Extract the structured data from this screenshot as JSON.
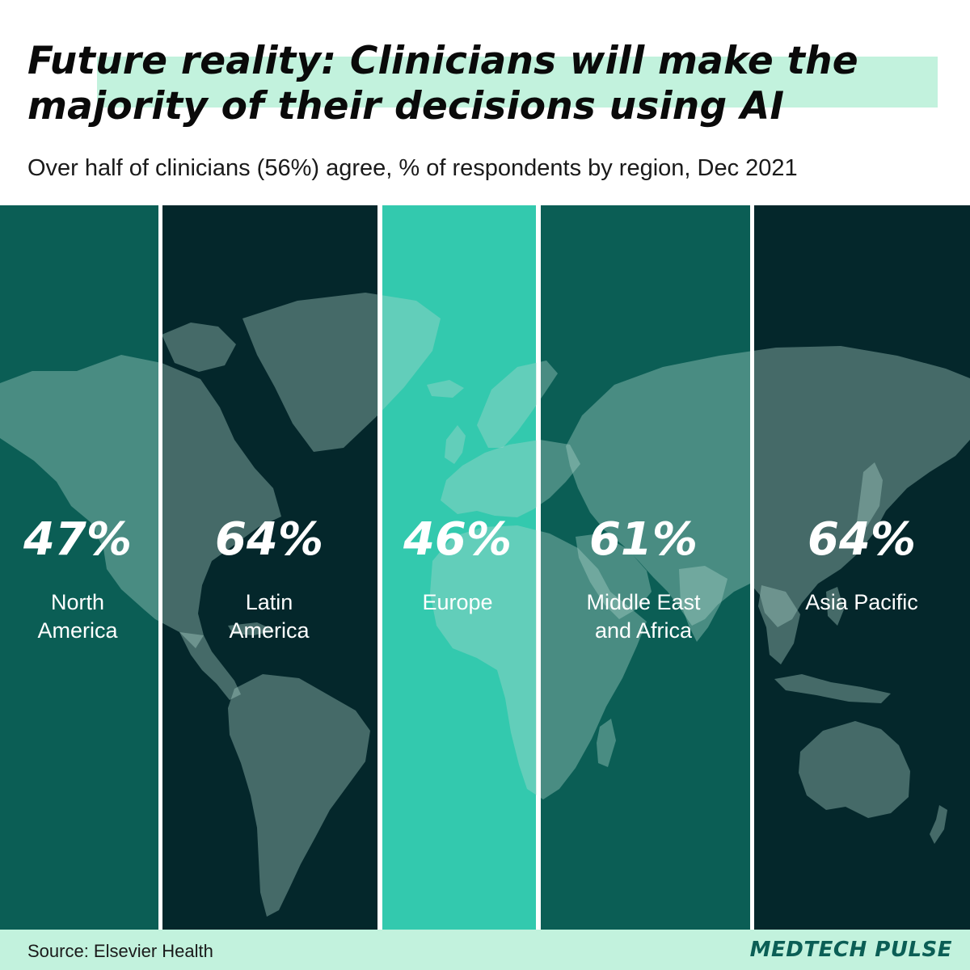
{
  "title": {
    "line1": "Future reality: Clinicians will make the",
    "line2": "majority of their decisions using AI"
  },
  "subtitle": "Over half of clinicians (56%) agree, % of respondents by region, Dec 2021",
  "colors": {
    "highlight": "#c2f2dd",
    "teal_dark": "#0b5e55",
    "navy": "#04272b",
    "teal_light": "#33c9ae",
    "land": "rgba(175,215,205,0.38)",
    "text": "#ffffff"
  },
  "chart_data": {
    "type": "bar",
    "categories": [
      "North America",
      "Latin America",
      "Europe",
      "Middle East and Africa",
      "Asia Pacific"
    ],
    "category_lines": [
      [
        "North",
        "America"
      ],
      [
        "Latin",
        "America"
      ],
      [
        "Europe"
      ],
      [
        "Middle East",
        "and Africa"
      ],
      [
        "Asia Pacific"
      ]
    ],
    "values": [
      47,
      64,
      46,
      61,
      64
    ],
    "value_labels": [
      "47%",
      "64%",
      "46%",
      "61%",
      "64%"
    ],
    "unit": "%",
    "title": "Future reality: Clinicians will make the majority of their decisions using AI",
    "subtitle": "Over half of clinicians (56%) agree, % of respondents by region, Dec 2021",
    "background": "world map",
    "grid": false,
    "legend": "none"
  },
  "footer": {
    "source": "Source: Elsevier Health",
    "brand": "MEDTECH PULSE"
  }
}
